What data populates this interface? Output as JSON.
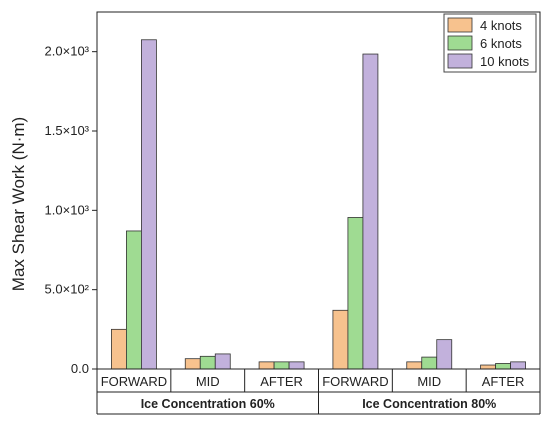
{
  "chart_data": {
    "type": "bar",
    "ylabel": "Max Shear Work (N·m)",
    "ylim": [
      0,
      2250
    ],
    "y_ticks": [
      0,
      500,
      1000,
      1500,
      2000
    ],
    "y_tick_labels": [
      "0.0",
      "5.0×10²",
      "1.0×10³",
      "1.5×10³",
      "2.0×10³"
    ],
    "categories": [
      "FORWARD",
      "MID",
      "AFTER",
      "FORWARD",
      "MID",
      "AFTER"
    ],
    "groups": [
      {
        "label": "Ice Concentration 60%",
        "categories": [
          "FORWARD",
          "MID",
          "AFTER"
        ]
      },
      {
        "label": "Ice Concentration 80%",
        "categories": [
          "FORWARD",
          "MID",
          "AFTER"
        ]
      }
    ],
    "series": [
      {
        "name": "4 knots",
        "color": "#f7c28e",
        "values": [
          250,
          65,
          45,
          370,
          45,
          25
        ]
      },
      {
        "name": "6 knots",
        "color": "#9fdb92",
        "values": [
          870,
          80,
          45,
          955,
          75,
          35
        ]
      },
      {
        "name": "10 knots",
        "color": "#c2b1dc",
        "values": [
          2075,
          95,
          45,
          1985,
          185,
          45
        ]
      }
    ],
    "legend_position": "top-right",
    "grid": false
  }
}
